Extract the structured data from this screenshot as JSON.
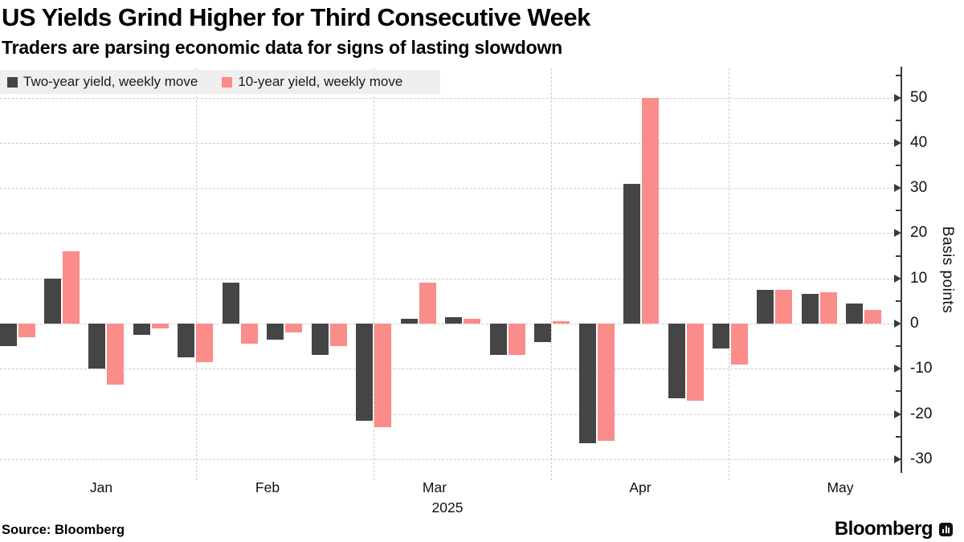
{
  "header": {
    "title": "US Yields Grind Higher for Third Consecutive Week",
    "subtitle": "Traders are parsing economic data for signs of lasting slowdown"
  },
  "chart_data": {
    "type": "bar",
    "title": "US Yields Grind Higher for Third Consecutive Week",
    "subtitle": "Traders are parsing economic data for signs of lasting slowdown",
    "categories": [
      "Jan",
      "Feb",
      "Mar",
      "Apr",
      "May"
    ],
    "year": "2025",
    "weeks_per_month": [
      5,
      4,
      4,
      4,
      3
    ],
    "series": [
      {
        "name": "Two-year yield, weekly move",
        "color": "#454545",
        "values": [
          -5,
          10,
          -10,
          -2.5,
          -7.5,
          9,
          -3.5,
          -7,
          -21.5,
          1,
          1.5,
          -7,
          -4,
          -26.5,
          31,
          -16.5,
          -5.5,
          7.5,
          6.5,
          4.5
        ]
      },
      {
        "name": "10-year yield, weekly move",
        "color": "#fa8c8a",
        "values": [
          -3,
          16,
          -13.5,
          -1,
          -8.5,
          -4.5,
          -2,
          -5,
          -23,
          9,
          1,
          -7,
          0.5,
          -26,
          50,
          -17,
          -9,
          7.5,
          7,
          3
        ]
      }
    ],
    "xlabel": "",
    "ylabel": "Basis points",
    "ylim": [
      -32.5,
      57
    ],
    "yticks": [
      50,
      40,
      30,
      20,
      10,
      0,
      -10,
      -20,
      -30
    ],
    "yticks_minor": [
      55,
      45,
      35,
      25,
      15,
      5,
      -5,
      -15,
      -25
    ],
    "grid": "dashed, horizontal every 10bp and vertical at month boundaries",
    "legend_position": "top-left",
    "axis_position": "right"
  },
  "legend": {
    "items": [
      {
        "label": "Two-year yield, weekly move",
        "color": "#454545"
      },
      {
        "label": "10-year yield, weekly move",
        "color": "#fa8c8a"
      }
    ]
  },
  "footer": {
    "source": "Source: Bloomberg",
    "brand": "Bloomberg",
    "brand_icon": "bloomberg-terminal-icon"
  }
}
